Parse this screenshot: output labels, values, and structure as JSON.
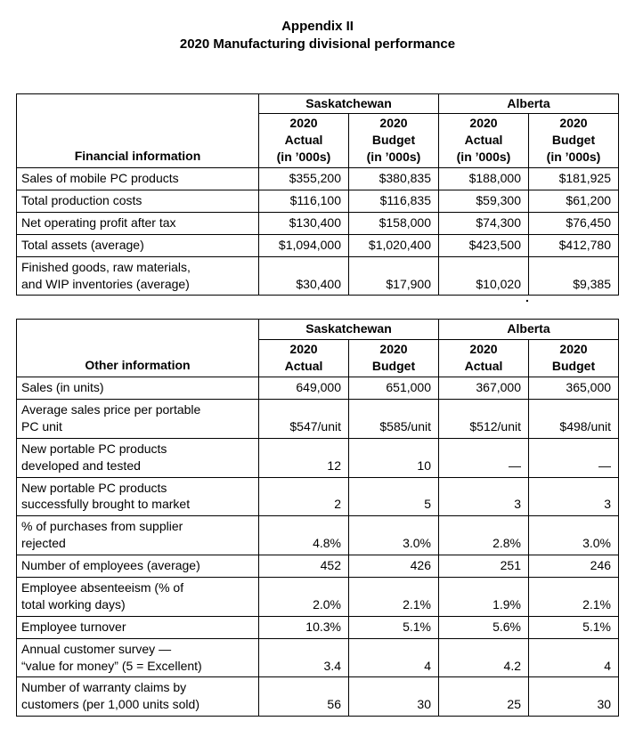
{
  "title": {
    "line1": "Appendix II",
    "line2": "2020 Manufacturing divisional performance"
  },
  "stray_mark": ".",
  "tables": [
    {
      "label_header": "Financial information",
      "group_headers": [
        "Saskatchewan",
        "Alberta"
      ],
      "col_headers": [
        "2020\nActual\n(in ’000s)",
        "2020\nBudget\n(in ’000s)",
        "2020\nActual\n(in ’000s)",
        "2020\nBudget\n(in ’000s)"
      ],
      "rows": [
        {
          "label": "Sales of mobile PC products",
          "values": [
            "$355,200",
            "$380,835",
            "$188,000",
            "$181,925"
          ]
        },
        {
          "label": "Total production costs",
          "values": [
            "$116,100",
            "$116,835",
            "$59,300",
            "$61,200"
          ]
        },
        {
          "label": "Net operating profit after tax",
          "values": [
            "$130,400",
            "$158,000",
            "$74,300",
            "$76,450"
          ]
        },
        {
          "label": "Total assets (average)",
          "values": [
            "$1,094,000",
            "$1,020,400",
            "$423,500",
            "$412,780"
          ]
        },
        {
          "label": "Finished goods, raw materials,\nand WIP inventories (average)",
          "values": [
            "$30,400",
            "$17,900",
            "$10,020",
            "$9,385"
          ]
        }
      ]
    },
    {
      "label_header": "Other information",
      "group_headers": [
        "Saskatchewan",
        "Alberta"
      ],
      "col_headers": [
        "2020\nActual",
        "2020\nBudget",
        "2020\nActual",
        "2020\nBudget"
      ],
      "rows": [
        {
          "label": "Sales (in units)",
          "values": [
            "649,000",
            "651,000",
            "367,000",
            "365,000"
          ]
        },
        {
          "label": "Average sales price per portable\nPC unit",
          "values": [
            "$547/unit",
            "$585/unit",
            "$512/unit",
            "$498/unit"
          ]
        },
        {
          "label": "New portable PC products\ndeveloped and tested",
          "values": [
            "12",
            "10",
            "—",
            "—"
          ]
        },
        {
          "label": "New portable PC products\nsuccessfully brought to market",
          "values": [
            "2",
            "5",
            "3",
            "3"
          ]
        },
        {
          "label": "% of purchases from supplier\nrejected",
          "values": [
            "4.8%",
            "3.0%",
            "2.8%",
            "3.0%"
          ]
        },
        {
          "label": "Number of employees (average)",
          "values": [
            "452",
            "426",
            "251",
            "246"
          ]
        },
        {
          "label": "Employee absenteeism (% of\ntotal working days)",
          "values": [
            "2.0%",
            "2.1%",
            "1.9%",
            "2.1%"
          ]
        },
        {
          "label": "Employee turnover",
          "values": [
            "10.3%",
            "5.1%",
            "5.6%",
            "5.1%"
          ]
        },
        {
          "label": "Annual customer survey —\n“value for money” (5 = Excellent)",
          "values": [
            "3.4",
            "4",
            "4.2",
            "4"
          ]
        },
        {
          "label": "Number of warranty claims by\ncustomers (per 1,000 units sold)",
          "values": [
            "56",
            "30",
            "25",
            "30"
          ]
        }
      ]
    }
  ]
}
